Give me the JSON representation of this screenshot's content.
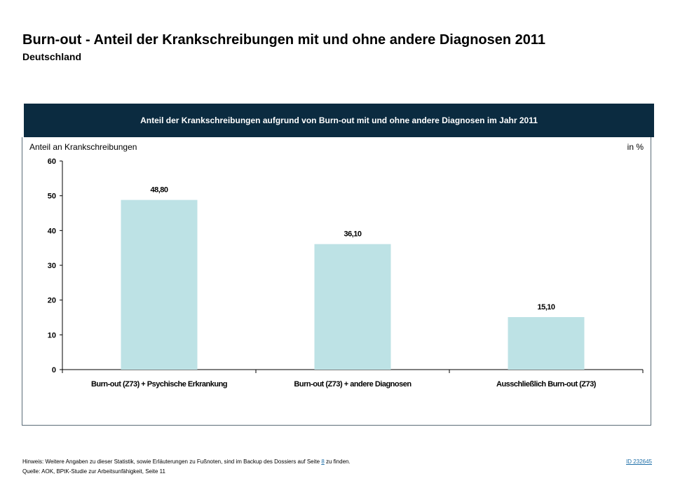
{
  "page": {
    "title": "Burn-out - Anteil der Krankschreibungen mit und ohne andere Diagnosen 2011",
    "subtitle": "Deutschland"
  },
  "chart_header": "Anteil der Krankschreibungen aufgrund von Burn-out mit und ohne andere Diagnosen im Jahr 2011",
  "footer": {
    "note_before": "Hinweis: Weitere Angaben zu dieser Statistik, sowie Erläuterungen zu Fußnoten, sind im Backup des Dossiers auf Seite",
    "note_page": "8",
    "note_after": "zu finden.",
    "source": "Quelle: AOK, BPtK-Studie zur Arbeitsunfähigkeit, Seite 11",
    "id_link": "ID 232645"
  },
  "colors": {
    "bar": "#bde2e5",
    "header_bg": "#0b2b40"
  },
  "chart_data": {
    "type": "bar",
    "title": "Anteil der Krankschreibungen aufgrund von Burn-out mit und ohne andere Diagnosen im Jahr 2011",
    "ylabel": "Anteil an Krankschreibungen",
    "unit_label": "in %",
    "categories": [
      "Burn-out (Z73) + Psychische Erkrankung",
      "Burn-out (Z73) + andere Diagnosen",
      "Ausschließlich Burn-out (Z73)"
    ],
    "values": [
      48.8,
      36.1,
      15.1
    ],
    "value_labels": [
      "48,80",
      "36,10",
      "15,10"
    ],
    "ylim": [
      0,
      60
    ],
    "yticks": [
      0,
      10,
      20,
      30,
      40,
      50,
      60
    ],
    "grid": false,
    "legend": "none"
  }
}
